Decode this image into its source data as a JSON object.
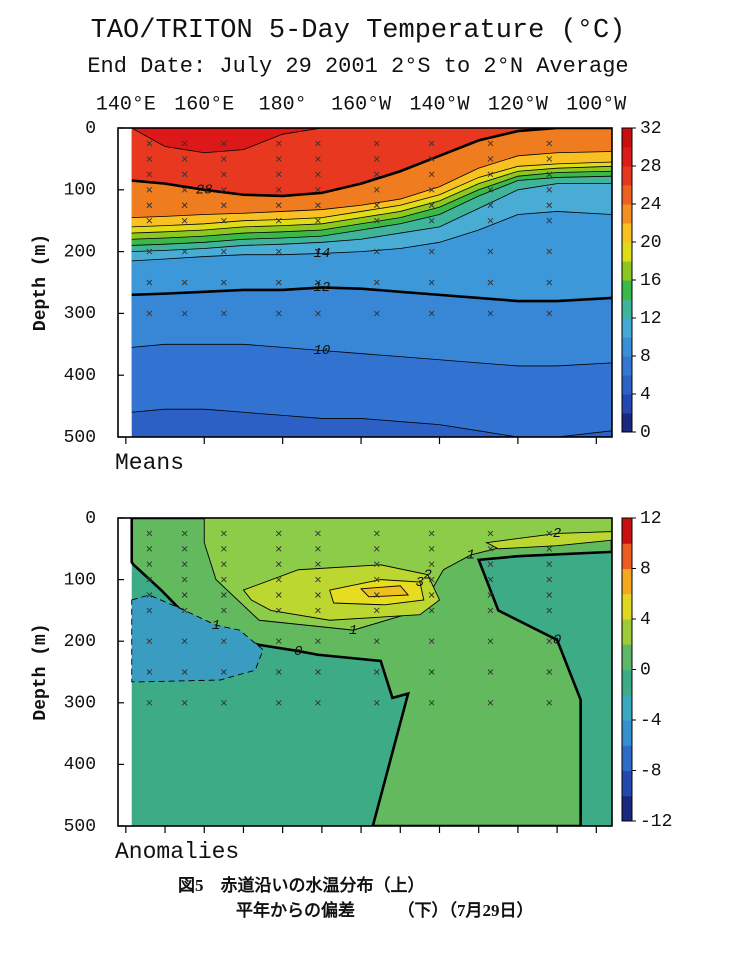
{
  "chart_data": [
    {
      "type": "contour",
      "title": "TAO/TRITON 5-Day Temperature (°C)",
      "subtitle": "End Date: July 29 2001  2°S to 2°N Average",
      "xlim": [
        138,
        264
      ],
      "xticks": [
        {
          "value": 140,
          "label": "140°E"
        },
        {
          "value": 160,
          "label": "160°E"
        },
        {
          "value": 180,
          "label": "180°"
        },
        {
          "value": 200,
          "label": "160°W"
        },
        {
          "value": 220,
          "label": "140°W"
        },
        {
          "value": 240,
          "label": "120°W"
        },
        {
          "value": 260,
          "label": "100°W"
        }
      ],
      "ylim": [
        500,
        0
      ],
      "yticks": [
        0,
        100,
        200,
        300,
        400,
        500
      ],
      "ylabel": "Depth (m)",
      "panel_label": "Means",
      "clim": [
        0,
        32
      ],
      "cticks": [
        0,
        4,
        8,
        12,
        16,
        20,
        24,
        28,
        32
      ],
      "colormap": [
        "#1a2880",
        "#2448b0",
        "#2c62c8",
        "#3578d4",
        "#3a8fd8",
        "#46a8d4",
        "#3fb49a",
        "#3cb848",
        "#8cc820",
        "#e0dc18",
        "#f8c020",
        "#f49020",
        "#ee6020",
        "#e63820",
        "#dc1c18",
        "#c81010"
      ],
      "background": "#2c60c4",
      "lons": [
        141.5,
        150,
        160,
        170,
        180,
        190,
        200,
        210,
        220,
        230,
        240,
        250,
        264
      ],
      "contours": [
        {
          "level": 8,
          "color": "#3272d0",
          "depths": [
            460,
            455,
            455,
            460,
            465,
            470,
            470,
            475,
            480,
            490,
            500,
            500,
            490
          ]
        },
        {
          "level": 10,
          "color": "#3886d6",
          "depths": [
            355,
            350,
            350,
            350,
            355,
            360,
            365,
            370,
            375,
            380,
            385,
            385,
            380
          ]
        },
        {
          "level": 12,
          "color": "#3c98d8",
          "depths": [
            270,
            268,
            265,
            262,
            262,
            258,
            260,
            265,
            270,
            275,
            280,
            280,
            275
          ]
        },
        {
          "level": 14,
          "color": "#48acd4",
          "depths": [
            215,
            212,
            208,
            205,
            205,
            203,
            200,
            195,
            185,
            165,
            140,
            135,
            140
          ]
        },
        {
          "level": 16,
          "color": "#3fb49a",
          "depths": [
            200,
            198,
            195,
            190,
            188,
            185,
            180,
            170,
            160,
            130,
            100,
            90,
            90
          ]
        },
        {
          "level": 18,
          "color": "#3cb848",
          "depths": [
            190,
            188,
            185,
            180,
            178,
            175,
            165,
            155,
            140,
            110,
            85,
            80,
            78
          ]
        },
        {
          "level": 20,
          "color": "#8cc820",
          "depths": [
            180,
            178,
            175,
            170,
            168,
            165,
            155,
            145,
            128,
            100,
            78,
            72,
            70
          ]
        },
        {
          "level": 22,
          "color": "#e0dc18",
          "depths": [
            170,
            168,
            165,
            160,
            158,
            155,
            145,
            135,
            118,
            90,
            70,
            65,
            62
          ]
        },
        {
          "level": 24,
          "color": "#f8c020",
          "depths": [
            160,
            158,
            155,
            150,
            148,
            145,
            135,
            125,
            108,
            80,
            62,
            58,
            55
          ]
        },
        {
          "level": 26,
          "color": "#f07c20",
          "depths": [
            145,
            143,
            140,
            138,
            135,
            132,
            125,
            115,
            95,
            65,
            45,
            40,
            38
          ]
        },
        {
          "level": 28,
          "color": "#e83820",
          "depths": [
            85,
            90,
            100,
            108,
            110,
            105,
            90,
            70,
            45,
            20,
            5,
            0,
            0
          ]
        },
        {
          "level": 30,
          "color": "#dc1818",
          "depths": [
            0,
            30,
            40,
            35,
            10,
            0,
            0,
            0,
            0,
            0,
            0,
            0,
            0
          ]
        }
      ],
      "labeled_levels": [
        28,
        14,
        12,
        10
      ],
      "bold_levels": [
        12,
        28
      ],
      "sample_lons": [
        146,
        155,
        165,
        179,
        189,
        204,
        218,
        233,
        248
      ],
      "sample_depths": [
        25,
        50,
        75,
        100,
        125,
        150,
        200,
        250,
        300
      ]
    },
    {
      "type": "contour",
      "xlim": [
        138,
        264
      ],
      "xticks": [
        140,
        150,
        160,
        170,
        180,
        190,
        200,
        210,
        220,
        230,
        240,
        250,
        260
      ],
      "ylim": [
        500,
        0
      ],
      "yticks": [
        0,
        100,
        200,
        300,
        400,
        500
      ],
      "ylabel": "Depth (m)",
      "panel_label": "Anomalies",
      "clim": [
        -12,
        12
      ],
      "cticks": [
        -12,
        -8,
        -4,
        0,
        4,
        8,
        12
      ],
      "colormap": [
        "#1a2880",
        "#2448b0",
        "#2f6cc8",
        "#3590d0",
        "#3aa8c0",
        "#3cab86",
        "#5cb868",
        "#9ccc38",
        "#e0d820",
        "#f4a820",
        "#ec5c20",
        "#c81010"
      ],
      "background": "#3cab86",
      "regions": [
        {
          "level": 0,
          "color": "#62b95e",
          "line": "bold",
          "labels": [
            "0",
            "0"
          ],
          "points": [
            [
              141.5,
              0
            ],
            [
              264,
              0
            ],
            [
              264,
              55
            ],
            [
              240,
              62
            ],
            [
              230,
              68
            ],
            [
              235,
              150
            ],
            [
              250,
              198
            ],
            [
              256,
              295
            ],
            [
              256,
              500
            ],
            [
              203,
              500
            ],
            [
              212,
              285
            ],
            [
              208,
              292
            ],
            [
              205,
              232
            ],
            [
              189,
              222
            ],
            [
              184,
              216
            ],
            [
              174,
              206
            ],
            [
              159,
              182
            ],
            [
              149,
              117
            ],
            [
              142,
              76
            ],
            [
              141.5,
              72
            ]
          ]
        },
        {
          "level": 1,
          "color": "#8ccc48",
          "line": "thin",
          "labels": [
            "1",
            "1"
          ],
          "points": [
            [
              160,
              0
            ],
            [
              264,
              0
            ],
            [
              264,
              28
            ],
            [
              243,
              36
            ],
            [
              228,
              60
            ],
            [
              221,
              84
            ],
            [
              215,
              150
            ],
            [
              198,
              182
            ],
            [
              174,
              166
            ],
            [
              163,
              100
            ],
            [
              160,
              40
            ]
          ]
        },
        {
          "level": 2,
          "color": "#bcd830",
          "line": "thin",
          "labels": [
            "2"
          ],
          "points": [
            [
              170,
              117
            ],
            [
              184,
              84
            ],
            [
              205,
              76
            ],
            [
              217,
              92
            ],
            [
              220,
              133
            ],
            [
              215,
              157
            ],
            [
              192,
              166
            ],
            [
              177,
              150
            ],
            [
              172,
              133
            ]
          ]
        },
        {
          "level": 2,
          "color": "#bcd830",
          "line": "thin",
          "labels": [
            "2"
          ],
          "points": [
            [
              232,
              40
            ],
            [
              250,
              25
            ],
            [
              264,
              22
            ],
            [
              264,
              36
            ],
            [
              250,
              45
            ],
            [
              235,
              50
            ]
          ]
        },
        {
          "level": 3,
          "color": "#e8dc20",
          "line": "thin",
          "labels": [
            "3"
          ],
          "points": [
            [
              192,
              117
            ],
            [
              205,
              100
            ],
            [
              215,
              104
            ],
            [
              216,
              133
            ],
            [
              206,
              141
            ],
            [
              193,
              138
            ]
          ]
        },
        {
          "level": 4,
          "color": "#f0c020",
          "line": "thin",
          "points": [
            [
              200,
              115
            ],
            [
              210,
              110
            ],
            [
              212,
              125
            ],
            [
              202,
              128
            ]
          ]
        },
        {
          "level": -1,
          "color": "#3a9cc0",
          "line": "dashed",
          "labels": [
            "1"
          ],
          "points": [
            [
              141.5,
              133
            ],
            [
              146,
              125
            ],
            [
              155,
              150
            ],
            [
              163,
              174
            ],
            [
              169,
              182
            ],
            [
              175,
              214
            ],
            [
              173,
              247
            ],
            [
              164,
              263
            ],
            [
              144,
              266
            ],
            [
              141.5,
              266
            ]
          ]
        }
      ],
      "sample_lons": [
        146,
        155,
        165,
        179,
        189,
        204,
        218,
        233,
        248
      ],
      "sample_depths": [
        25,
        50,
        75,
        100,
        125,
        150,
        200,
        250,
        300
      ]
    }
  ],
  "caption": {
    "line1": "図5　赤道沿いの水温分布（上）",
    "line2": "平年からの偏差　　　（下）（7月29日）"
  }
}
